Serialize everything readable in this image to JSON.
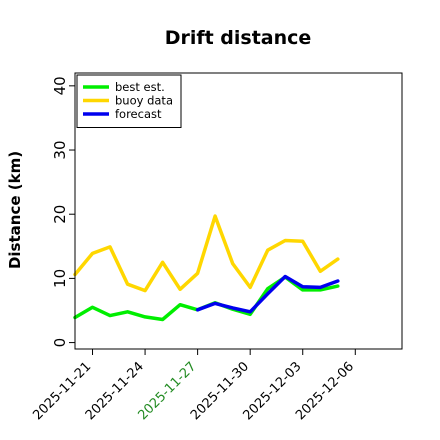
{
  "chart_data": {
    "type": "line",
    "title": "Drift distance",
    "xlabel": "",
    "ylabel": "Distance (km)",
    "ylim": [
      -1,
      42
    ],
    "xlim": [
      -3,
      53
    ],
    "yticks": [
      0,
      10,
      20,
      30,
      40
    ],
    "x_ticks": [
      {
        "x": 0,
        "label": "2025-11-21",
        "color": "#000000"
      },
      {
        "x": 9,
        "label": "2025-11-24",
        "color": "#000000"
      },
      {
        "x": 18,
        "label": "2025-11-27",
        "color": "#228b22"
      },
      {
        "x": 27,
        "label": "2025-11-30",
        "color": "#000000"
      },
      {
        "x": 36,
        "label": "2025-12-03",
        "color": "#000000"
      },
      {
        "x": 45,
        "label": "2025-12-06",
        "color": "#000000"
      }
    ],
    "legend": {
      "position": "top-left",
      "entries": [
        "best est.",
        "buoy data",
        "forecast"
      ]
    },
    "series": [
      {
        "name": "best est.",
        "color": "#00ee00",
        "x": [
          -3,
          0,
          3,
          6,
          9,
          12,
          15,
          18,
          21,
          24,
          27,
          30,
          33,
          36,
          39,
          42
        ],
        "y": [
          3.9,
          5.5,
          4.2,
          4.8,
          4.0,
          3.6,
          5.9,
          5.1,
          6.2,
          5.2,
          4.4,
          8.4,
          10.2,
          8.2,
          8.2,
          8.8
        ]
      },
      {
        "name": "buoy data",
        "color": "#ffd700",
        "x": [
          -3,
          0,
          3,
          6,
          9,
          12,
          15,
          18,
          21,
          24,
          27,
          30,
          33,
          36,
          39,
          42
        ],
        "y": [
          10.6,
          13.9,
          14.9,
          9.1,
          8.1,
          12.5,
          8.3,
          10.8,
          19.7,
          12.3,
          8.6,
          14.4,
          15.9,
          15.8,
          11.1,
          13.0
        ]
      },
      {
        "name": "forecast",
        "color": "#0000ee",
        "x": [
          18,
          21,
          24,
          27,
          30,
          33,
          36,
          39,
          42
        ],
        "y": [
          5.1,
          6.1,
          5.4,
          4.8,
          7.6,
          10.3,
          8.7,
          8.6,
          9.6
        ]
      }
    ]
  }
}
